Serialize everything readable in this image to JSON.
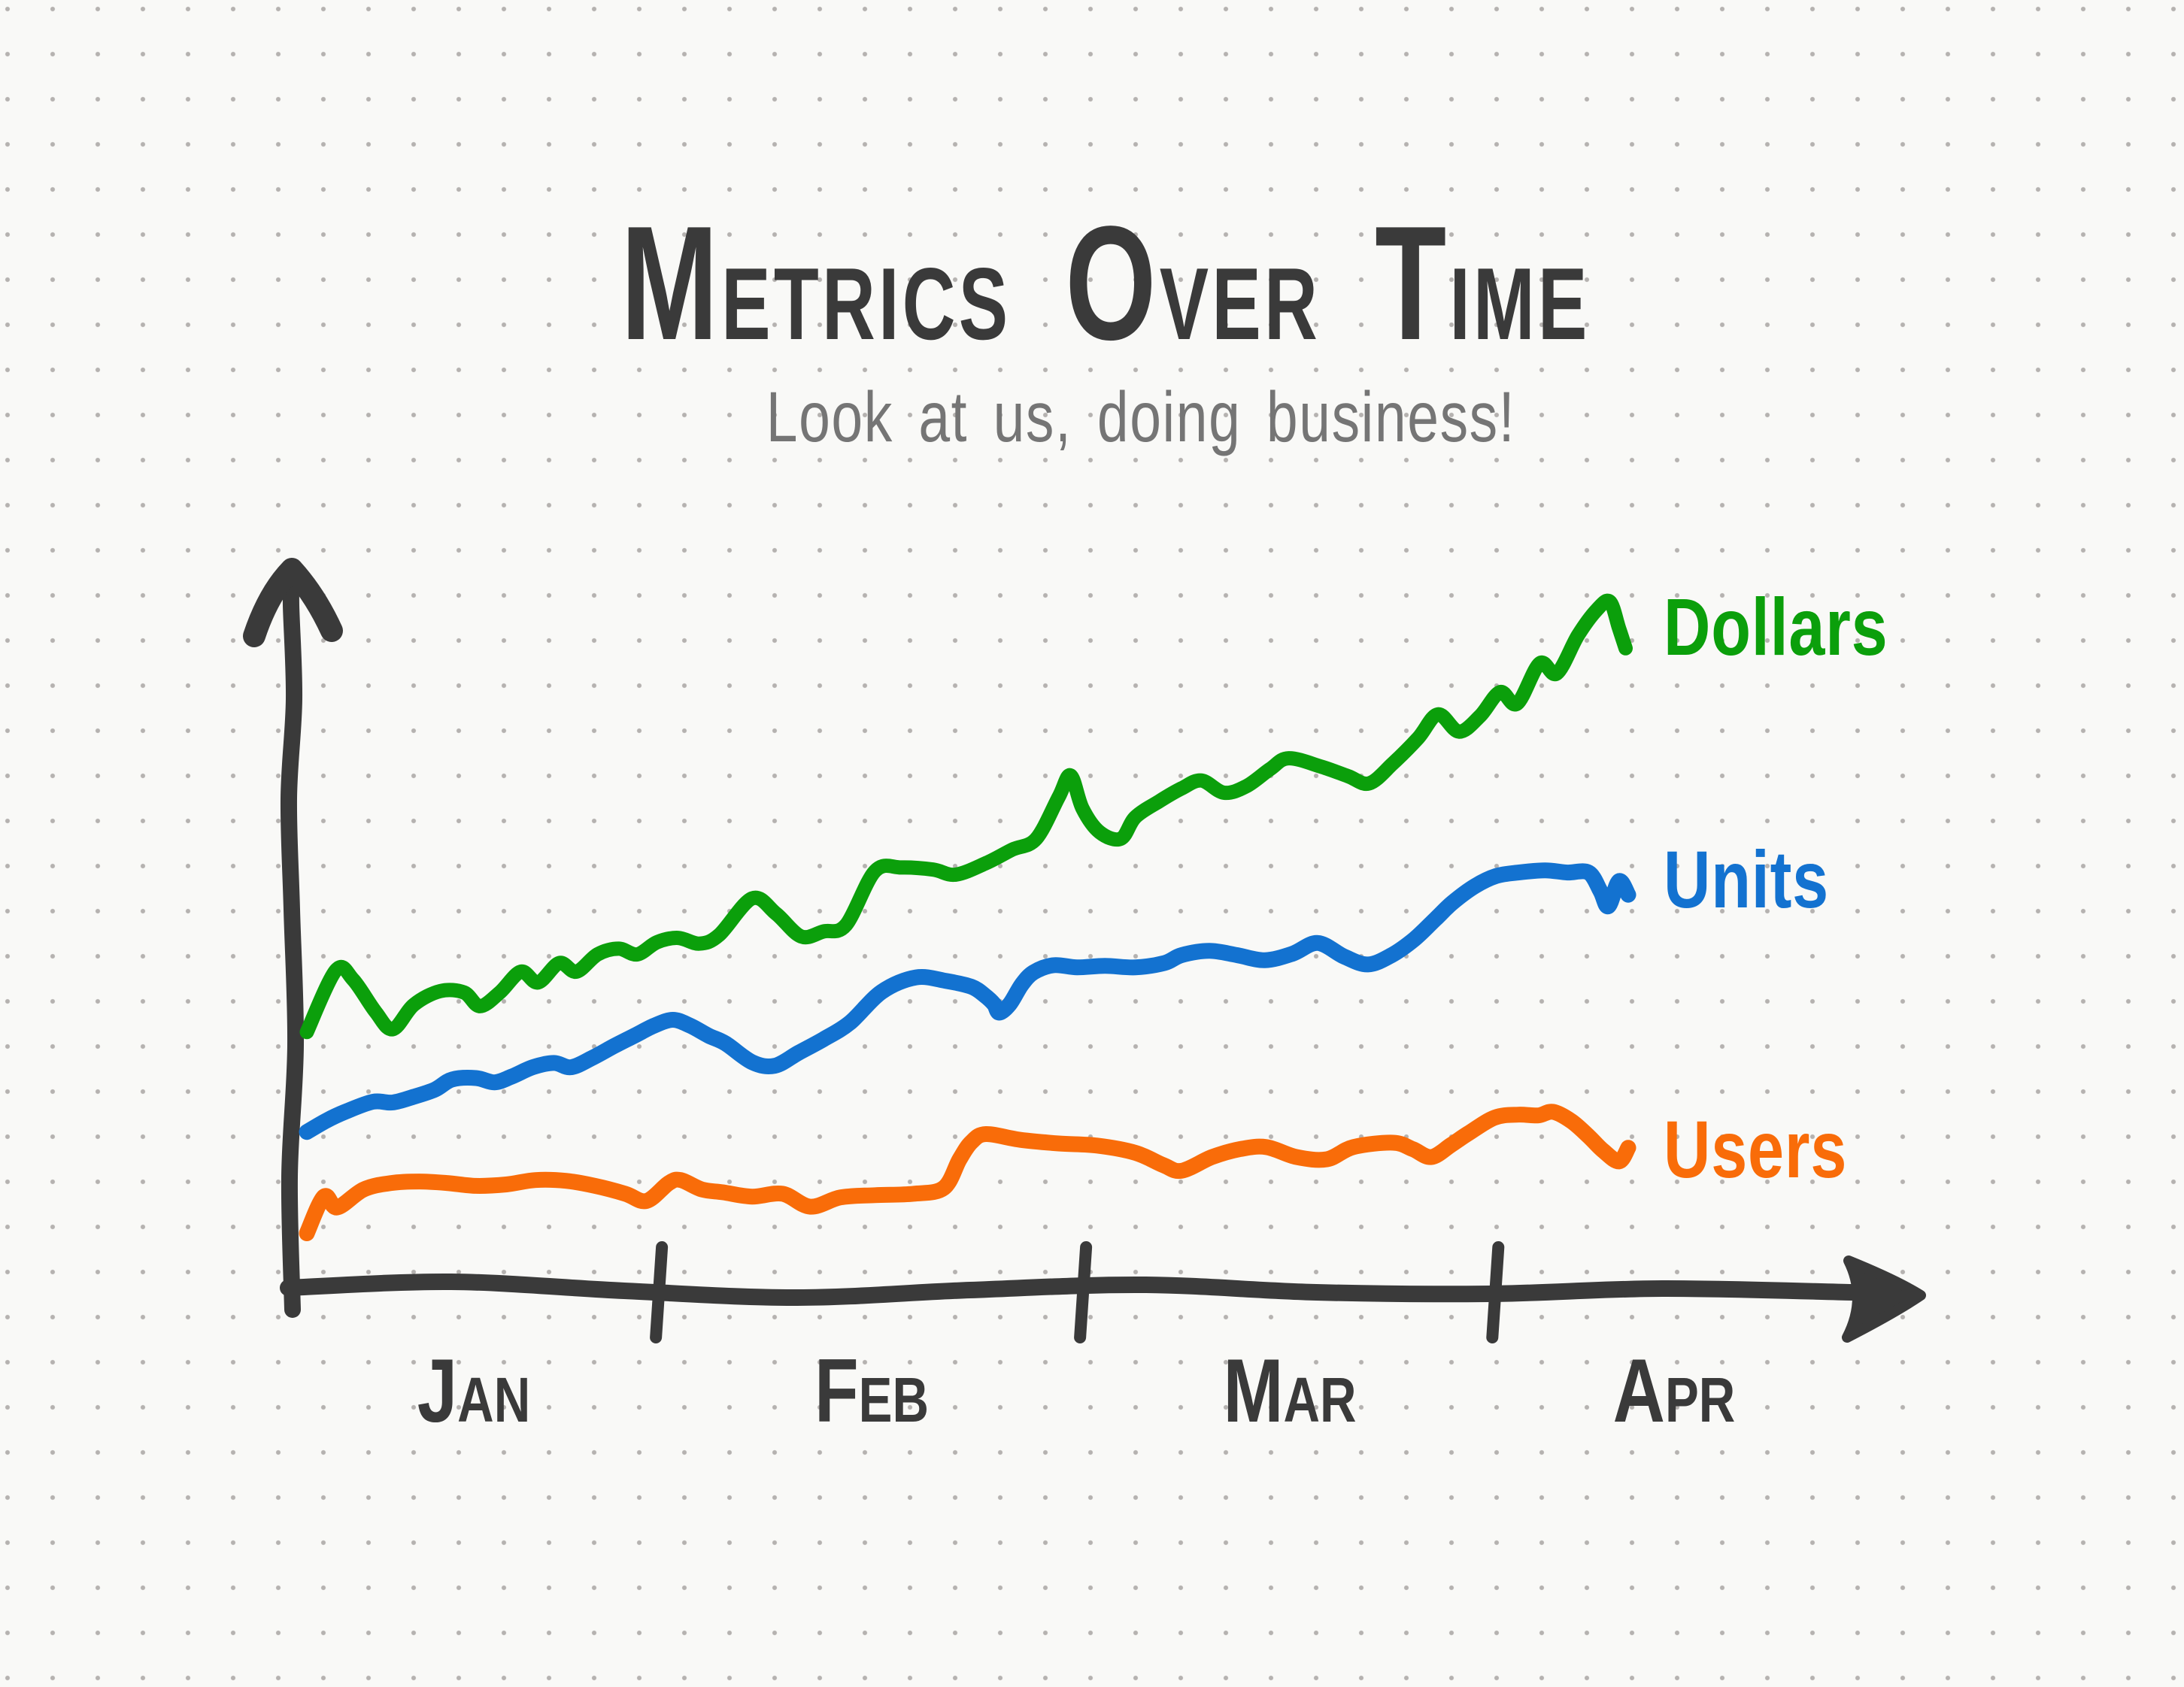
{
  "page": {
    "title": "Metrics Over Time",
    "subtitle": "Look at us, doing business!"
  },
  "colors": {
    "background": "#f9f9f7",
    "grid_dot": "#b5b2b0",
    "axis": "#3a3a3a",
    "title": "#3a3a3a",
    "subtitle": "#757575",
    "dollars": "#0b9f0b",
    "units": "#1372d0",
    "users": "#f96c09"
  },
  "chart_data": {
    "type": "line",
    "title": "Metrics Over Time",
    "subtitle": "Look at us, doing business!",
    "style": "hand-drawn marker sketch on dotted note paper",
    "grid": "dot-grid paper background, no plot gridlines",
    "x_axis": {
      "labels": [
        "Jan",
        "Feb",
        "Mar",
        "Apr"
      ],
      "tick_positions": [
        26.7,
        58.8,
        90.0
      ],
      "range": [
        0,
        100
      ],
      "arrow": true
    },
    "y_axis": {
      "labels": [],
      "range": [
        0,
        100
      ],
      "arrow": true,
      "note": "no numeric scale shown on chart"
    },
    "legend": {
      "position": "right of each line end",
      "entries": [
        "Dollars",
        "Units",
        "Users"
      ]
    },
    "series": [
      {
        "name": "Dollars",
        "color": "#0b9f0b",
        "trend": "strong upward with jitter, sharp spike mid-Feb",
        "points": [
          [
            0,
            35.9
          ],
          [
            2.2,
            44.5
          ],
          [
            3.5,
            43.2
          ],
          [
            5.2,
            38.7
          ],
          [
            6.5,
            36.3
          ],
          [
            8.1,
            39.7
          ],
          [
            10.1,
            41.6
          ],
          [
            11.9,
            41.4
          ],
          [
            13.1,
            39.5
          ],
          [
            14.6,
            41.4
          ],
          [
            16.2,
            44.3
          ],
          [
            17.5,
            42.8
          ],
          [
            19.1,
            45.5
          ],
          [
            20.4,
            44.3
          ],
          [
            22,
            46.7
          ],
          [
            23.6,
            47.5
          ],
          [
            25,
            46.7
          ],
          [
            26.5,
            48.4
          ],
          [
            28.1,
            49
          ],
          [
            29.7,
            48.2
          ],
          [
            31.2,
            49.4
          ],
          [
            33.7,
            54.5
          ],
          [
            35.5,
            52.4
          ],
          [
            37.4,
            49.2
          ],
          [
            39.1,
            49.9
          ],
          [
            40.8,
            50.8
          ],
          [
            43,
            58.3
          ],
          [
            45,
            58.8
          ],
          [
            47.4,
            58.5
          ],
          [
            49.1,
            57.8
          ],
          [
            51.4,
            59.4
          ],
          [
            53.4,
            61.3
          ],
          [
            55.2,
            62.8
          ],
          [
            56.9,
            68.6
          ],
          [
            57.8,
            71.6
          ],
          [
            58.7,
            67
          ],
          [
            60,
            63.7
          ],
          [
            61.6,
            62.8
          ],
          [
            62.7,
            65.8
          ],
          [
            64.5,
            68
          ],
          [
            66.2,
            69.8
          ],
          [
            67.7,
            70.9
          ],
          [
            69.4,
            69.2
          ],
          [
            71.1,
            70.1
          ],
          [
            72.9,
            72.5
          ],
          [
            74.3,
            74
          ],
          [
            76.8,
            72.8
          ],
          [
            78.8,
            71.5
          ],
          [
            80.4,
            70.5
          ],
          [
            82.2,
            73.3
          ],
          [
            84.1,
            76.8
          ],
          [
            85.6,
            80.1
          ],
          [
            87.2,
            77.7
          ],
          [
            88.8,
            79.9
          ],
          [
            90.3,
            83.2
          ],
          [
            91.6,
            81.6
          ],
          [
            93.3,
            87.2
          ],
          [
            94.6,
            85.8
          ],
          [
            96.2,
            91.1
          ],
          [
            97.6,
            94.6
          ],
          [
            98.6,
            95.8
          ],
          [
            99.3,
            92.1
          ],
          [
            99.8,
            89.3
          ]
        ]
      },
      {
        "name": "Units",
        "color": "#1372d0",
        "trend": "steady upward with plateau, sharp V-notch dip after mid-Feb, small dip flick at end",
        "points": [
          [
            0,
            22
          ],
          [
            1.5,
            23.6
          ],
          [
            2.9,
            24.8
          ],
          [
            5,
            26.2
          ],
          [
            6.5,
            26.1
          ],
          [
            8.1,
            26.9
          ],
          [
            9.7,
            27.9
          ],
          [
            11,
            29.3
          ],
          [
            12.8,
            29.5
          ],
          [
            14.2,
            28.9
          ],
          [
            15.5,
            29.7
          ],
          [
            17.1,
            31
          ],
          [
            18.7,
            31.6
          ],
          [
            20,
            31
          ],
          [
            21.6,
            32.3
          ],
          [
            23.2,
            33.9
          ],
          [
            24.8,
            35.4
          ],
          [
            26.3,
            36.8
          ],
          [
            27.7,
            37.6
          ],
          [
            29,
            36.8
          ],
          [
            30.4,
            35.4
          ],
          [
            31.7,
            34.3
          ],
          [
            33.7,
            31.7
          ],
          [
            35.4,
            31.2
          ],
          [
            37.2,
            33
          ],
          [
            39.1,
            34.9
          ],
          [
            41.1,
            37.2
          ],
          [
            43.5,
            41.5
          ],
          [
            46.1,
            43.5
          ],
          [
            48.4,
            43
          ],
          [
            50.3,
            42.2
          ],
          [
            51.3,
            41
          ],
          [
            52,
            39.8
          ],
          [
            52.4,
            38.6
          ],
          [
            53.2,
            39.8
          ],
          [
            54.1,
            42.5
          ],
          [
            55,
            44.2
          ],
          [
            56.5,
            45.2
          ],
          [
            58.3,
            44.9
          ],
          [
            60.4,
            45.1
          ],
          [
            62.7,
            44.9
          ],
          [
            64.9,
            45.5
          ],
          [
            66.2,
            46.6
          ],
          [
            68.3,
            47.2
          ],
          [
            70.4,
            46.6
          ],
          [
            72.5,
            45.9
          ],
          [
            74.6,
            46.8
          ],
          [
            76.5,
            48.3
          ],
          [
            78.5,
            46.4
          ],
          [
            80.3,
            45.3
          ],
          [
            82.1,
            46.6
          ],
          [
            83.8,
            48.8
          ],
          [
            85.4,
            51.6
          ],
          [
            86.7,
            53.9
          ],
          [
            88.4,
            56.2
          ],
          [
            90,
            57.6
          ],
          [
            91.7,
            58.1
          ],
          [
            93.7,
            58.4
          ],
          [
            95.4,
            58.1
          ],
          [
            97,
            58.1
          ],
          [
            97.9,
            55.5
          ],
          [
            98.5,
            53.4
          ],
          [
            99.3,
            56.9
          ],
          [
            100,
            55
          ]
        ]
      },
      {
        "name": "Users",
        "color": "#f96c09",
        "trend": "mostly flat with small wiggles, step up just before Mar, hump near Apr then dip",
        "points": [
          [
            0,
            7.9
          ],
          [
            1.3,
            13
          ],
          [
            2.3,
            11.5
          ],
          [
            4.3,
            14
          ],
          [
            6.4,
            14.9
          ],
          [
            8.5,
            15.1
          ],
          [
            10.6,
            14.9
          ],
          [
            12.8,
            14.5
          ],
          [
            15.1,
            14.7
          ],
          [
            17.3,
            15.3
          ],
          [
            19.6,
            15.2
          ],
          [
            21.8,
            14.5
          ],
          [
            24.1,
            13.4
          ],
          [
            25.7,
            12.4
          ],
          [
            27.4,
            14.9
          ],
          [
            28.3,
            15.3
          ],
          [
            29.9,
            14
          ],
          [
            31.5,
            13.6
          ],
          [
            33.7,
            13
          ],
          [
            36,
            13.4
          ],
          [
            38.1,
            11.6
          ],
          [
            40.4,
            12.9
          ],
          [
            43,
            13.2
          ],
          [
            45.9,
            13.4
          ],
          [
            48.2,
            14.2
          ],
          [
            49.4,
            18.2
          ],
          [
            50.3,
            20.6
          ],
          [
            51.4,
            21.7
          ],
          [
            54,
            20.9
          ],
          [
            56.9,
            20.4
          ],
          [
            59.8,
            20.1
          ],
          [
            62.7,
            19.1
          ],
          [
            64.8,
            17.4
          ],
          [
            66.2,
            16.6
          ],
          [
            68.5,
            18.5
          ],
          [
            70.6,
            19.6
          ],
          [
            72.6,
            19.9
          ],
          [
            74.9,
            18.5
          ],
          [
            77.2,
            18.2
          ],
          [
            79.2,
            19.9
          ],
          [
            82.2,
            20.5
          ],
          [
            83.7,
            19.6
          ],
          [
            85.1,
            18.5
          ],
          [
            86.6,
            20.2
          ],
          [
            87.9,
            21.8
          ],
          [
            89.9,
            24
          ],
          [
            91.7,
            24.4
          ],
          [
            93.2,
            24.3
          ],
          [
            94.3,
            24.8
          ],
          [
            95.7,
            23.5
          ],
          [
            97,
            21.4
          ],
          [
            98.1,
            19.4
          ],
          [
            99.3,
            17.9
          ],
          [
            100,
            19.8
          ]
        ]
      }
    ]
  }
}
